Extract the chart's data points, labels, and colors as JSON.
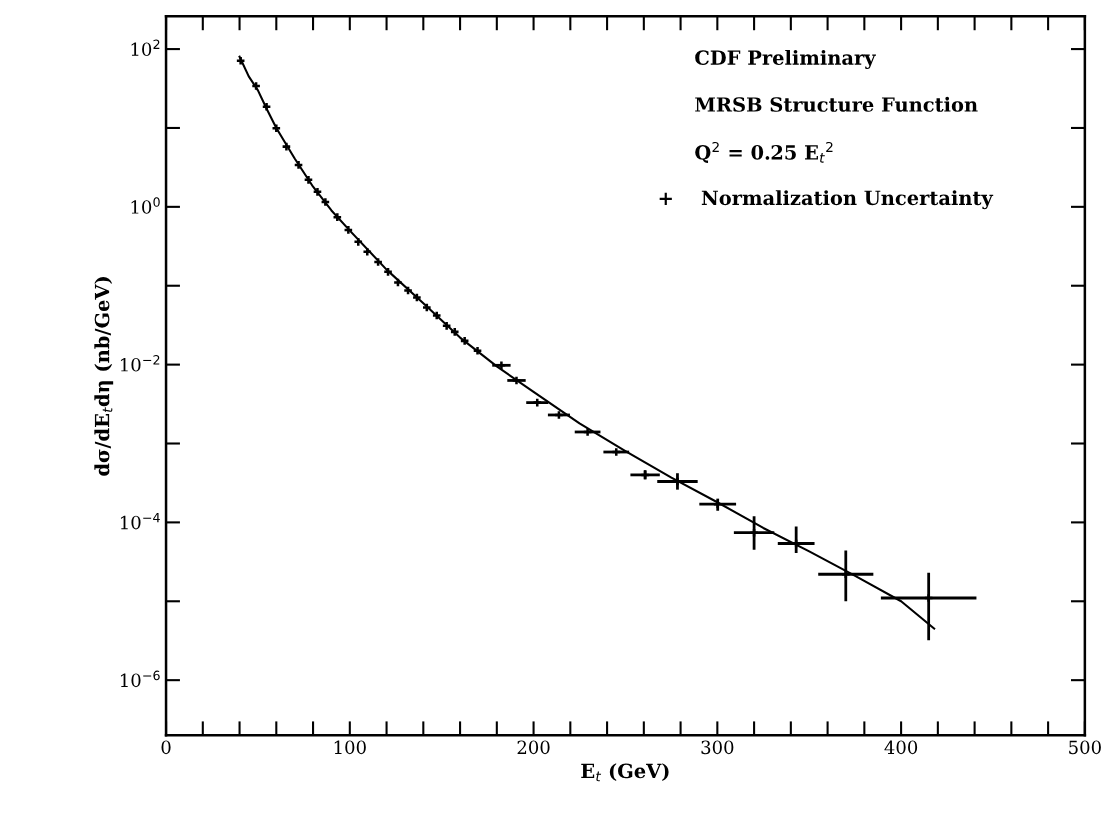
{
  "chart_data": {
    "type": "scatter",
    "xlabel": "E$_{t}$ (GeV)",
    "ylabel": "dσ/dE$_{t}$dη (nb/GeV)",
    "log": "y",
    "xlim": [
      0,
      500
    ],
    "ylim": [
      2e-07,
      260
    ],
    "xticks": [
      0,
      {
        "value": 20,
        "label": null
      },
      {
        "value": 40,
        "label": null
      },
      {
        "value": 60,
        "label": null
      },
      {
        "value": 80,
        "label": null
      },
      100,
      {
        "value": 120,
        "label": null
      },
      {
        "value": 140,
        "label": null
      },
      {
        "value": 160,
        "label": null
      },
      {
        "value": 180,
        "label": null
      },
      200,
      {
        "value": 220,
        "label": null
      },
      {
        "value": 240,
        "label": null
      },
      {
        "value": 260,
        "label": null
      },
      {
        "value": 280,
        "label": null
      },
      300,
      {
        "value": 320,
        "label": null
      },
      {
        "value": 340,
        "label": null
      },
      {
        "value": 360,
        "label": null
      },
      {
        "value": 380,
        "label": null
      },
      400,
      {
        "value": 420,
        "label": null
      },
      {
        "value": 440,
        "label": null
      },
      {
        "value": 460,
        "label": null
      },
      {
        "value": 480,
        "label": null
      },
      500
    ],
    "yticks": [
      {
        "value": 1e-06,
        "label": "10$^{−6}$"
      },
      {
        "value": 1e-05,
        "label": null
      },
      {
        "value": 0.0001,
        "label": "10$^{−4}$"
      },
      {
        "value": 0.001,
        "label": null
      },
      {
        "value": 0.01,
        "label": "10$^{−2}$"
      },
      {
        "value": 0.1,
        "label": null
      },
      {
        "value": 1,
        "label": "10$^{0}$"
      },
      {
        "value": 10,
        "label": null
      },
      {
        "value": 100,
        "label": "10$^{2}$"
      }
    ],
    "grid": false,
    "legend": false,
    "annotations": [
      "CDF Preliminary",
      "MRSB Structure Function",
      "Q$^{2}$ = 0.25 E$_{t}$$^{2}$",
      "+    Normalization Uncertainty"
    ],
    "series": [
      {
        "color": "#000000",
        "marker": "cross",
        "x": [
          40.6,
          49,
          54.7,
          60,
          65.5,
          72.1,
          77.5,
          82.4,
          86.7,
          93.2,
          99.2,
          104.6,
          109.5,
          115.4,
          120.8,
          126.2,
          131.7,
          136.5,
          141.9,
          147.3,
          152.7,
          157.1,
          162.5,
          169.5,
          182.5,
          190.7,
          202,
          213.8,
          229.4,
          245,
          260.7,
          278.3,
          300.2,
          320,
          342.9,
          369.9,
          415
        ],
        "values": [
          71,
          34,
          18.6,
          9.9,
          5.8,
          3.4,
          2.2,
          1.55,
          1.15,
          0.74,
          0.51,
          0.36,
          0.27,
          0.2,
          0.15,
          0.11,
          0.087,
          0.071,
          0.053,
          0.042,
          0.031,
          0.026,
          0.02,
          0.015,
          0.0098,
          0.0063,
          0.0033,
          0.0023,
          0.0014,
          0.00078,
          0.0004,
          0.00033,
          0.00017,
          7.4e-05,
          5.4e-05,
          2.2e-05,
          1.1e-05
        ],
        "xerrors": [
          null,
          null,
          null,
          null,
          null,
          null,
          null,
          null,
          null,
          null,
          null,
          null,
          null,
          null,
          null,
          null,
          null,
          null,
          null,
          null,
          null,
          null,
          null,
          null,
          5,
          5,
          6,
          6,
          7,
          7,
          8,
          11,
          10,
          11,
          10,
          15,
          26
        ],
        "errors": [
          null,
          null,
          null,
          null,
          null,
          null,
          null,
          null,
          null,
          null,
          null,
          null,
          null,
          null,
          null,
          null,
          null,
          null,
          null,
          null,
          null,
          null,
          null,
          null,
          null,
          null,
          null,
          null,
          null,
          null,
          [
            0.00035,
            0.00046
          ],
          [
            0.00026,
            0.00042
          ],
          [
            0.00014,
            0.0002
          ],
          [
            4.5e-05,
            0.00012
          ],
          [
            4.1e-05,
            8.9e-05
          ],
          [
            1e-05,
            4.4e-05
          ],
          [
            3.2e-06,
            2.3e-05
          ]
        ]
      },
      {
        "type": "line",
        "color": "#000000",
        "marker": "none",
        "x": [
          40,
          45,
          50,
          55,
          60,
          70,
          80,
          90,
          100,
          120,
          140,
          160,
          180,
          200,
          225,
          250,
          275,
          300,
          325,
          350,
          375,
          400,
          418
        ],
        "values": [
          80,
          45,
          30,
          17,
          10,
          4.1,
          1.8,
          0.9,
          0.5,
          0.16,
          0.06,
          0.022,
          0.0095,
          0.0045,
          0.0018,
          0.0008,
          0.00037,
          0.00018,
          8.5e-05,
          4.3e-05,
          2.1e-05,
          1e-05,
          4.5e-06
        ]
      }
    ]
  }
}
